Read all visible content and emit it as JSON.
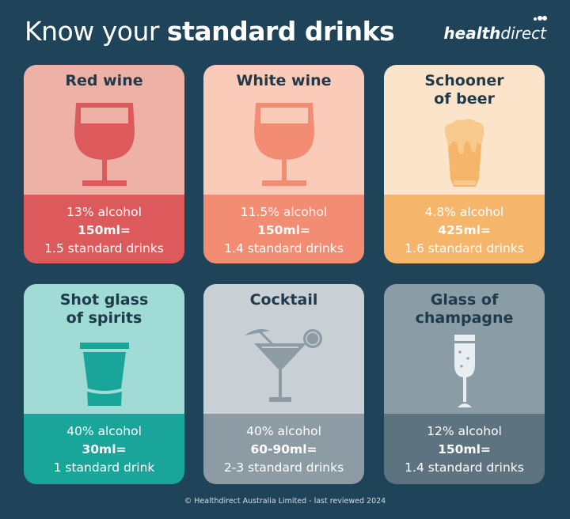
{
  "header": {
    "title_regular": "Know your ",
    "title_bold": "standard drinks",
    "logo_bold": "health",
    "logo_regular": "direct"
  },
  "colors": {
    "background": "#1f4459"
  },
  "cards": [
    {
      "title": "Red wine",
      "icon": "red-wine-glass-icon",
      "alcohol": "13% alcohol",
      "volume": "150ml=",
      "standard": "1.5 standard drinks",
      "top_color": "#eeb1a6",
      "bottom_color": "#dc5a5c"
    },
    {
      "title": "White wine",
      "icon": "white-wine-glass-icon",
      "alcohol": "11.5% alcohol",
      "volume": "150ml=",
      "standard": "1.4 standard drinks",
      "top_color": "#f9cbb8",
      "bottom_color": "#f28c73"
    },
    {
      "title": "Schooner of beer",
      "icon": "beer-glass-icon",
      "alcohol": "4.8% alcohol",
      "volume": "425ml=",
      "standard": "1.6 standard drinks",
      "top_color": "#fbe4c9",
      "bottom_color": "#f5b56a"
    },
    {
      "title": "Shot glass of spirits",
      "icon": "shot-glass-icon",
      "alcohol": "40% alcohol",
      "volume": "30ml=",
      "standard": "1 standard drink",
      "top_color": "#a0dbd5",
      "bottom_color": "#1aa59a"
    },
    {
      "title": "Cocktail",
      "icon": "cocktail-glass-icon",
      "alcohol": "40% alcohol",
      "volume": "60-90ml=",
      "standard": "2-3 standard drinks",
      "top_color": "#c8d0d5",
      "bottom_color": "#8d9ba4"
    },
    {
      "title": "Glass of champagne",
      "icon": "champagne-flute-icon",
      "alcohol": "12% alcohol",
      "volume": "150ml=",
      "standard": "1.4 standard drinks",
      "top_color": "#8a9ca6",
      "bottom_color": "#5d737f"
    }
  ],
  "footer": "© Healthdirect Australia Limited - last reviewed 2024"
}
